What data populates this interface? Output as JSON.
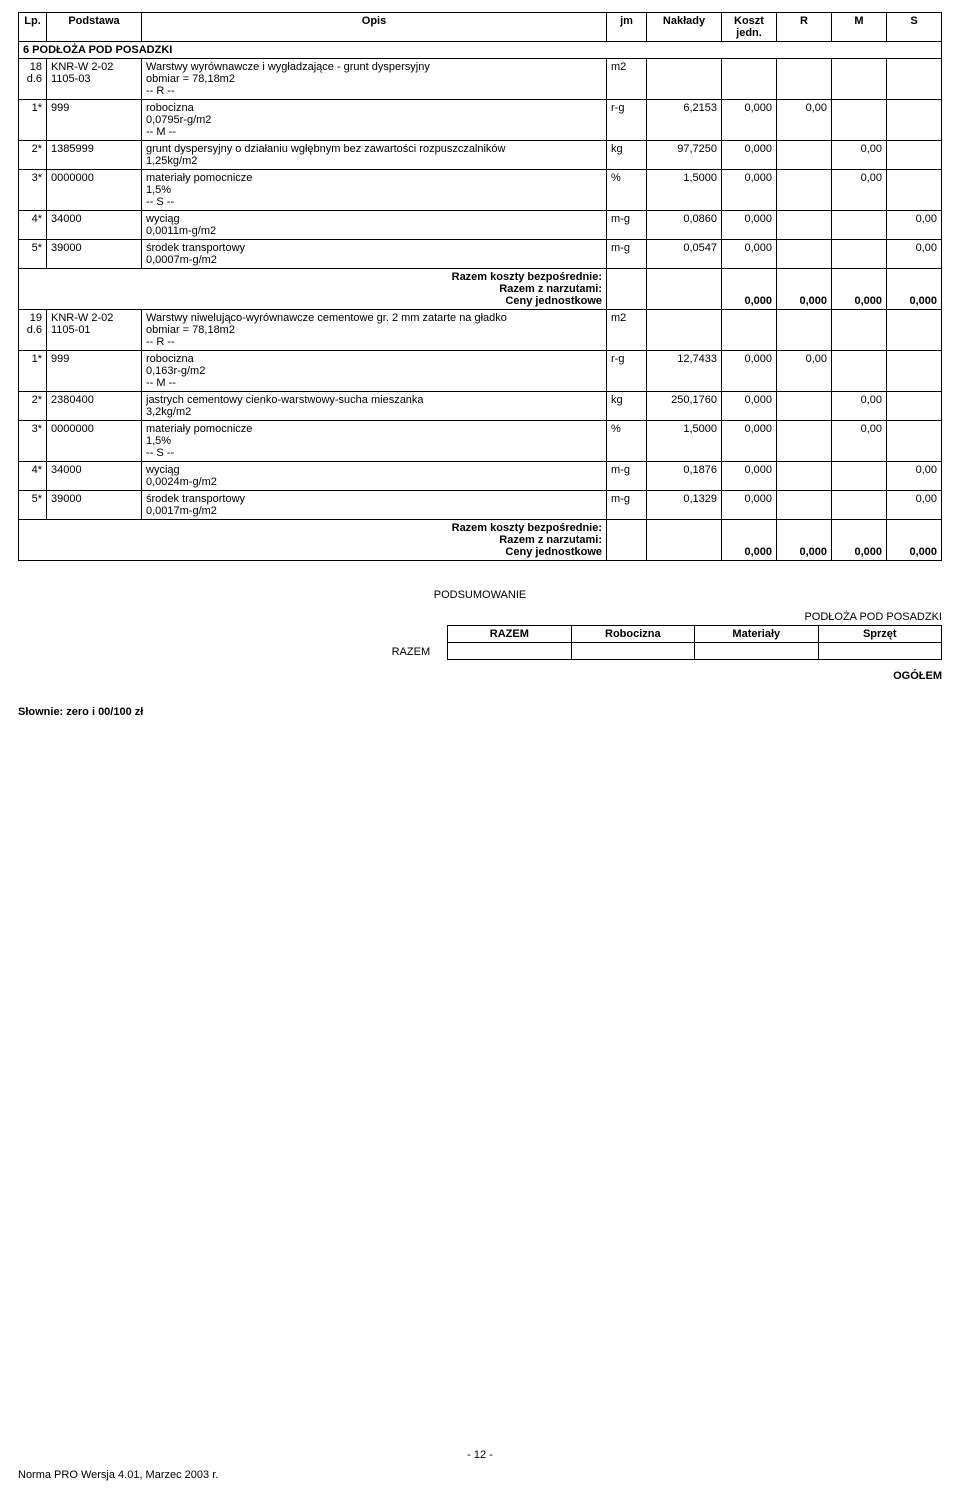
{
  "columns": [
    "Lp.",
    "Podstawa",
    "Opis",
    "jm",
    "Nakłady",
    "Koszt jedn.",
    "R",
    "M",
    "S"
  ],
  "section": {
    "number": "6",
    "title": "PODŁOŻA POD POSADZKI"
  },
  "items": [
    {
      "lp": "18",
      "lp_sub": "d.6",
      "podstawa": "KNR-W 2-02 1105-03",
      "opis_lines": [
        "Warstwy wyrównawcze i wygładzające - grunt dyspersyjny",
        "obmiar = 78,18m2",
        "-- R --"
      ],
      "jm": "m2",
      "sublines": [
        {
          "lp": "1*",
          "pod": "999",
          "opis": [
            "robocizna",
            "0,0795r-g/m2",
            "-- M --"
          ],
          "jm": "r-g",
          "nak": "6,2153",
          "kj": "0,000",
          "r": "0,00",
          "m": "",
          "s": ""
        },
        {
          "lp": "2*",
          "pod": "1385999",
          "opis": [
            "grunt dyspersyjny o działaniu wgłębnym bez zawartości rozpuszczalników",
            "1,25kg/m2"
          ],
          "jm": "kg",
          "nak": "97,7250",
          "kj": "0,000",
          "r": "",
          "m": "0,00",
          "s": ""
        },
        {
          "lp": "3*",
          "pod": "0000000",
          "opis": [
            "materiały pomocnicze",
            "1,5%",
            "-- S --"
          ],
          "jm": "%",
          "nak": "1,5000",
          "kj": "0,000",
          "r": "",
          "m": "0,00",
          "s": ""
        },
        {
          "lp": "4*",
          "pod": "34000",
          "opis": [
            "wyciąg",
            "0,0011m-g/m2"
          ],
          "jm": "m-g",
          "nak": "0,0860",
          "kj": "0,000",
          "r": "",
          "m": "",
          "s": "0,00"
        },
        {
          "lp": "5*",
          "pod": "39000",
          "opis": [
            "środek transportowy",
            "0,0007m-g/m2"
          ],
          "jm": "m-g",
          "nak": "0,0547",
          "kj": "0,000",
          "r": "",
          "m": "",
          "s": "0,00"
        }
      ],
      "totals": {
        "lines": [
          "Razem koszty bezpośrednie:",
          "Razem z narzutami:",
          "Ceny jednostkowe"
        ],
        "kj": "0,000",
        "r": "0,000",
        "m": "0,000",
        "s": "0,000"
      }
    },
    {
      "lp": "19",
      "lp_sub": "d.6",
      "podstawa": "KNR-W 2-02 1105-01",
      "opis_lines": [
        "Warstwy niwelująco-wyrównawcze cementowe gr. 2 mm zatarte na gładko",
        "obmiar = 78,18m2",
        "-- R --"
      ],
      "jm": "m2",
      "sublines": [
        {
          "lp": "1*",
          "pod": "999",
          "opis": [
            "robocizna",
            "0,163r-g/m2",
            "-- M --"
          ],
          "jm": "r-g",
          "nak": "12,7433",
          "kj": "0,000",
          "r": "0,00",
          "m": "",
          "s": ""
        },
        {
          "lp": "2*",
          "pod": "2380400",
          "opis": [
            "jastrych cementowy cienko-warstwowy-sucha mieszanka",
            "3,2kg/m2"
          ],
          "jm": "kg",
          "nak": "250,1760",
          "kj": "0,000",
          "r": "",
          "m": "0,00",
          "s": ""
        },
        {
          "lp": "3*",
          "pod": "0000000",
          "opis": [
            "materiały pomocnicze",
            "1,5%",
            "-- S --"
          ],
          "jm": "%",
          "nak": "1,5000",
          "kj": "0,000",
          "r": "",
          "m": "0,00",
          "s": ""
        },
        {
          "lp": "4*",
          "pod": "34000",
          "opis": [
            "wyciąg",
            "0,0024m-g/m2"
          ],
          "jm": "m-g",
          "nak": "0,1876",
          "kj": "0,000",
          "r": "",
          "m": "",
          "s": "0,00"
        },
        {
          "lp": "5*",
          "pod": "39000",
          "opis": [
            "środek transportowy",
            "0,0017m-g/m2"
          ],
          "jm": "m-g",
          "nak": "0,1329",
          "kj": "0,000",
          "r": "",
          "m": "",
          "s": "0,00"
        }
      ],
      "totals": {
        "lines": [
          "Razem koszty bezpośrednie:",
          "Razem z narzutami:",
          "Ceny jednostkowe"
        ],
        "kj": "0,000",
        "r": "0,000",
        "m": "0,000",
        "s": "0,000"
      }
    }
  ],
  "summary": {
    "heading": "PODSUMOWANIE",
    "right_label": "PODŁOŻA POD POSADZKI",
    "headers": [
      "RAZEM",
      "Robocizna",
      "Materiały",
      "Sprzęt"
    ],
    "side": "RAZEM",
    "ogolem": "OGÓŁEM"
  },
  "slownie": "Słownie:  zero i 00/100 zł",
  "footer": {
    "page": "- 12 -",
    "norma": "Norma PRO Wersja 4.01, Marzec 2003 r."
  }
}
